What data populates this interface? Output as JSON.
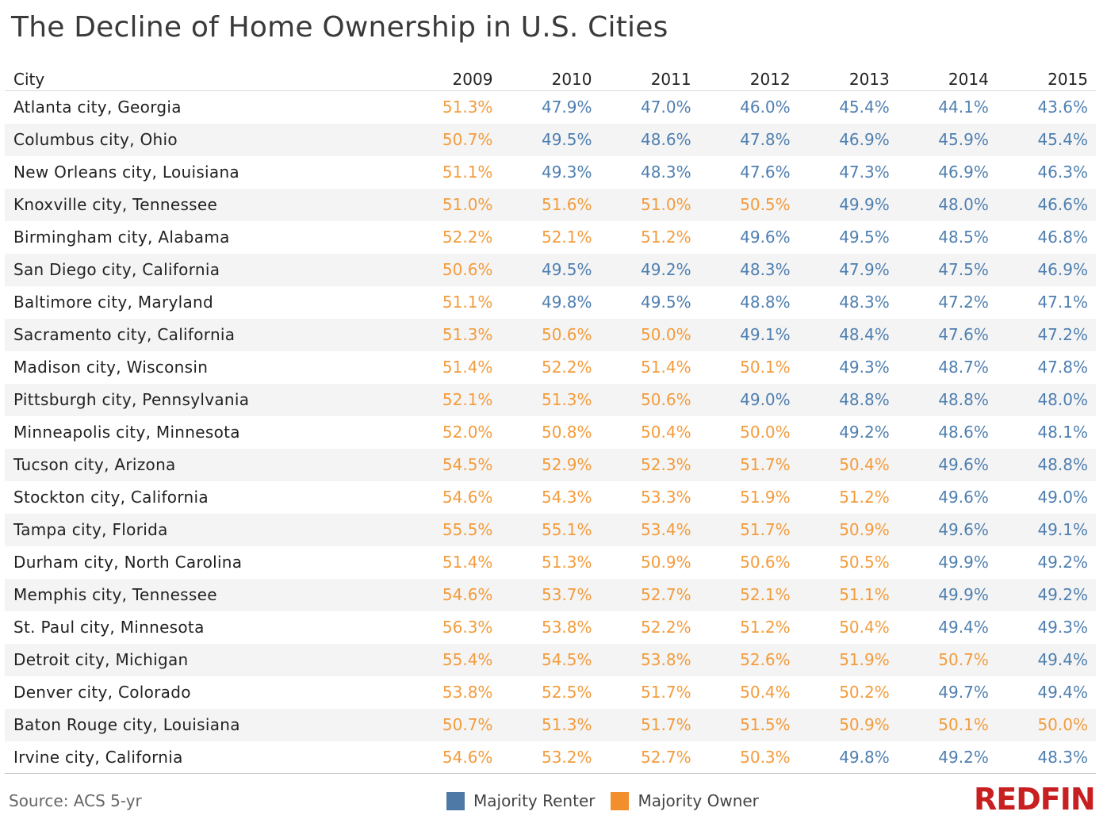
{
  "title": "The Decline of Home Ownership in U.S. Cities",
  "source": "Source: ACS 5-yr",
  "logo_text": "REDFIN",
  "colors": {
    "owner": "#f39c3d",
    "renter": "#4f7fb0",
    "owner_legend": "#f28e2b",
    "renter_legend": "#4e79a7",
    "logo": "#c82021"
  },
  "legend": [
    {
      "label": "Majority Renter",
      "key": "renter"
    },
    {
      "label": "Majority Owner",
      "key": "owner"
    }
  ],
  "chart_data": {
    "type": "table",
    "title": "The Decline of Home Ownership in U.S. Cities",
    "columns": [
      "City",
      "2009",
      "2010",
      "2011",
      "2012",
      "2013",
      "2014",
      "2015"
    ],
    "rows": [
      {
        "city": "Atlanta city, Georgia",
        "values": [
          "51.3%",
          "47.9%",
          "47.0%",
          "46.0%",
          "45.4%",
          "44.1%",
          "43.6%"
        ]
      },
      {
        "city": "Columbus city, Ohio",
        "values": [
          "50.7%",
          "49.5%",
          "48.6%",
          "47.8%",
          "46.9%",
          "45.9%",
          "45.4%"
        ]
      },
      {
        "city": "New Orleans city, Louisiana",
        "values": [
          "51.1%",
          "49.3%",
          "48.3%",
          "47.6%",
          "47.3%",
          "46.9%",
          "46.3%"
        ]
      },
      {
        "city": "Knoxville city, Tennessee",
        "values": [
          "51.0%",
          "51.6%",
          "51.0%",
          "50.5%",
          "49.9%",
          "48.0%",
          "46.6%"
        ]
      },
      {
        "city": "Birmingham city, Alabama",
        "values": [
          "52.2%",
          "52.1%",
          "51.2%",
          "49.6%",
          "49.5%",
          "48.5%",
          "46.8%"
        ]
      },
      {
        "city": "San Diego city, California",
        "values": [
          "50.6%",
          "49.5%",
          "49.2%",
          "48.3%",
          "47.9%",
          "47.5%",
          "46.9%"
        ]
      },
      {
        "city": "Baltimore city, Maryland",
        "values": [
          "51.1%",
          "49.8%",
          "49.5%",
          "48.8%",
          "48.3%",
          "47.2%",
          "47.1%"
        ]
      },
      {
        "city": "Sacramento city, California",
        "values": [
          "51.3%",
          "50.6%",
          "50.0%",
          "49.1%",
          "48.4%",
          "47.6%",
          "47.2%"
        ]
      },
      {
        "city": "Madison city, Wisconsin",
        "values": [
          "51.4%",
          "52.2%",
          "51.4%",
          "50.1%",
          "49.3%",
          "48.7%",
          "47.8%"
        ]
      },
      {
        "city": "Pittsburgh city, Pennsylvania",
        "values": [
          "52.1%",
          "51.3%",
          "50.6%",
          "49.0%",
          "48.8%",
          "48.8%",
          "48.0%"
        ]
      },
      {
        "city": "Minneapolis city, Minnesota",
        "values": [
          "52.0%",
          "50.8%",
          "50.4%",
          "50.0%",
          "49.2%",
          "48.6%",
          "48.1%"
        ]
      },
      {
        "city": "Tucson city, Arizona",
        "values": [
          "54.5%",
          "52.9%",
          "52.3%",
          "51.7%",
          "50.4%",
          "49.6%",
          "48.8%"
        ]
      },
      {
        "city": "Stockton city, California",
        "values": [
          "54.6%",
          "54.3%",
          "53.3%",
          "51.9%",
          "51.2%",
          "49.6%",
          "49.0%"
        ]
      },
      {
        "city": "Tampa city, Florida",
        "values": [
          "55.5%",
          "55.1%",
          "53.4%",
          "51.7%",
          "50.9%",
          "49.6%",
          "49.1%"
        ]
      },
      {
        "city": "Durham city, North Carolina",
        "values": [
          "51.4%",
          "51.3%",
          "50.9%",
          "50.6%",
          "50.5%",
          "49.9%",
          "49.2%"
        ]
      },
      {
        "city": "Memphis city, Tennessee",
        "values": [
          "54.6%",
          "53.7%",
          "52.7%",
          "52.1%",
          "51.1%",
          "49.9%",
          "49.2%"
        ]
      },
      {
        "city": "St. Paul city, Minnesota",
        "values": [
          "56.3%",
          "53.8%",
          "52.2%",
          "51.2%",
          "50.4%",
          "49.4%",
          "49.3%"
        ]
      },
      {
        "city": "Detroit city, Michigan",
        "values": [
          "55.4%",
          "54.5%",
          "53.8%",
          "52.6%",
          "51.9%",
          "50.7%",
          "49.4%"
        ]
      },
      {
        "city": "Denver city, Colorado",
        "values": [
          "53.8%",
          "52.5%",
          "51.7%",
          "50.4%",
          "50.2%",
          "49.7%",
          "49.4%"
        ]
      },
      {
        "city": "Baton Rouge city, Louisiana",
        "values": [
          "50.7%",
          "51.3%",
          "51.7%",
          "51.5%",
          "50.9%",
          "50.1%",
          "50.0%"
        ]
      },
      {
        "city": "Irvine city, California",
        "values": [
          "54.6%",
          "53.2%",
          "52.7%",
          "50.3%",
          "49.8%",
          "49.2%",
          "48.3%"
        ]
      }
    ]
  }
}
